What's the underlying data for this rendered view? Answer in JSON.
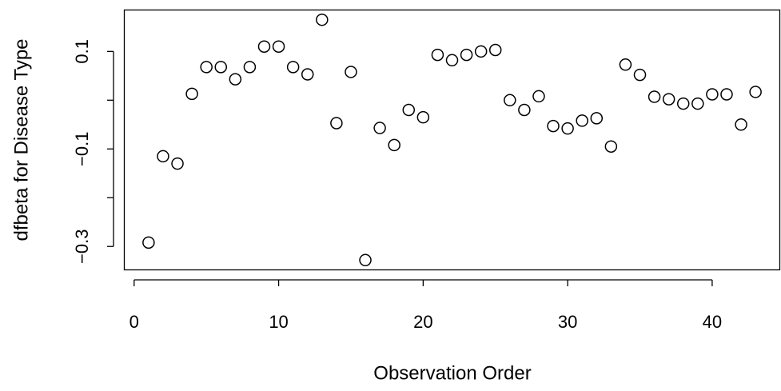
{
  "chart_data": {
    "type": "scatter",
    "x_label": "Observation Order",
    "y_label": "dfbeta for Disease Type",
    "x": [
      1,
      2,
      3,
      4,
      5,
      6,
      7,
      8,
      9,
      10,
      11,
      12,
      13,
      14,
      15,
      16,
      17,
      18,
      19,
      20,
      21,
      22,
      23,
      24,
      25,
      26,
      27,
      28,
      29,
      30,
      31,
      32,
      33,
      34,
      35,
      36,
      37,
      38,
      39,
      40,
      41,
      42,
      43
    ],
    "values": [
      -0.292,
      -0.115,
      -0.13,
      0.013,
      0.068,
      0.068,
      0.043,
      0.068,
      0.11,
      0.11,
      0.068,
      0.053,
      0.165,
      -0.047,
      0.058,
      -0.328,
      -0.057,
      -0.092,
      -0.02,
      -0.035,
      0.093,
      0.082,
      0.093,
      0.1,
      0.103,
      0,
      -0.02,
      0.008,
      -0.053,
      -0.058,
      -0.042,
      -0.037,
      -0.095,
      0.073,
      0.052,
      0.007,
      0.002,
      -0.007,
      -0.007,
      0.012,
      0.012,
      -0.05,
      0.017
    ],
    "color": "#000000",
    "xlim": [
      -0.68,
      44.68
    ],
    "ylim": [
      -0.348,
      0.185
    ],
    "xticks": [
      0,
      10,
      20,
      30,
      40
    ],
    "yticks": [
      {
        "value": -0.3,
        "label": "−0.3"
      },
      {
        "value": -0.2,
        "label": null
      },
      {
        "value": -0.1,
        "label": "−0.1"
      },
      {
        "value": 0,
        "label": null
      },
      {
        "value": 0.1,
        "label": "0.1"
      }
    ]
  }
}
